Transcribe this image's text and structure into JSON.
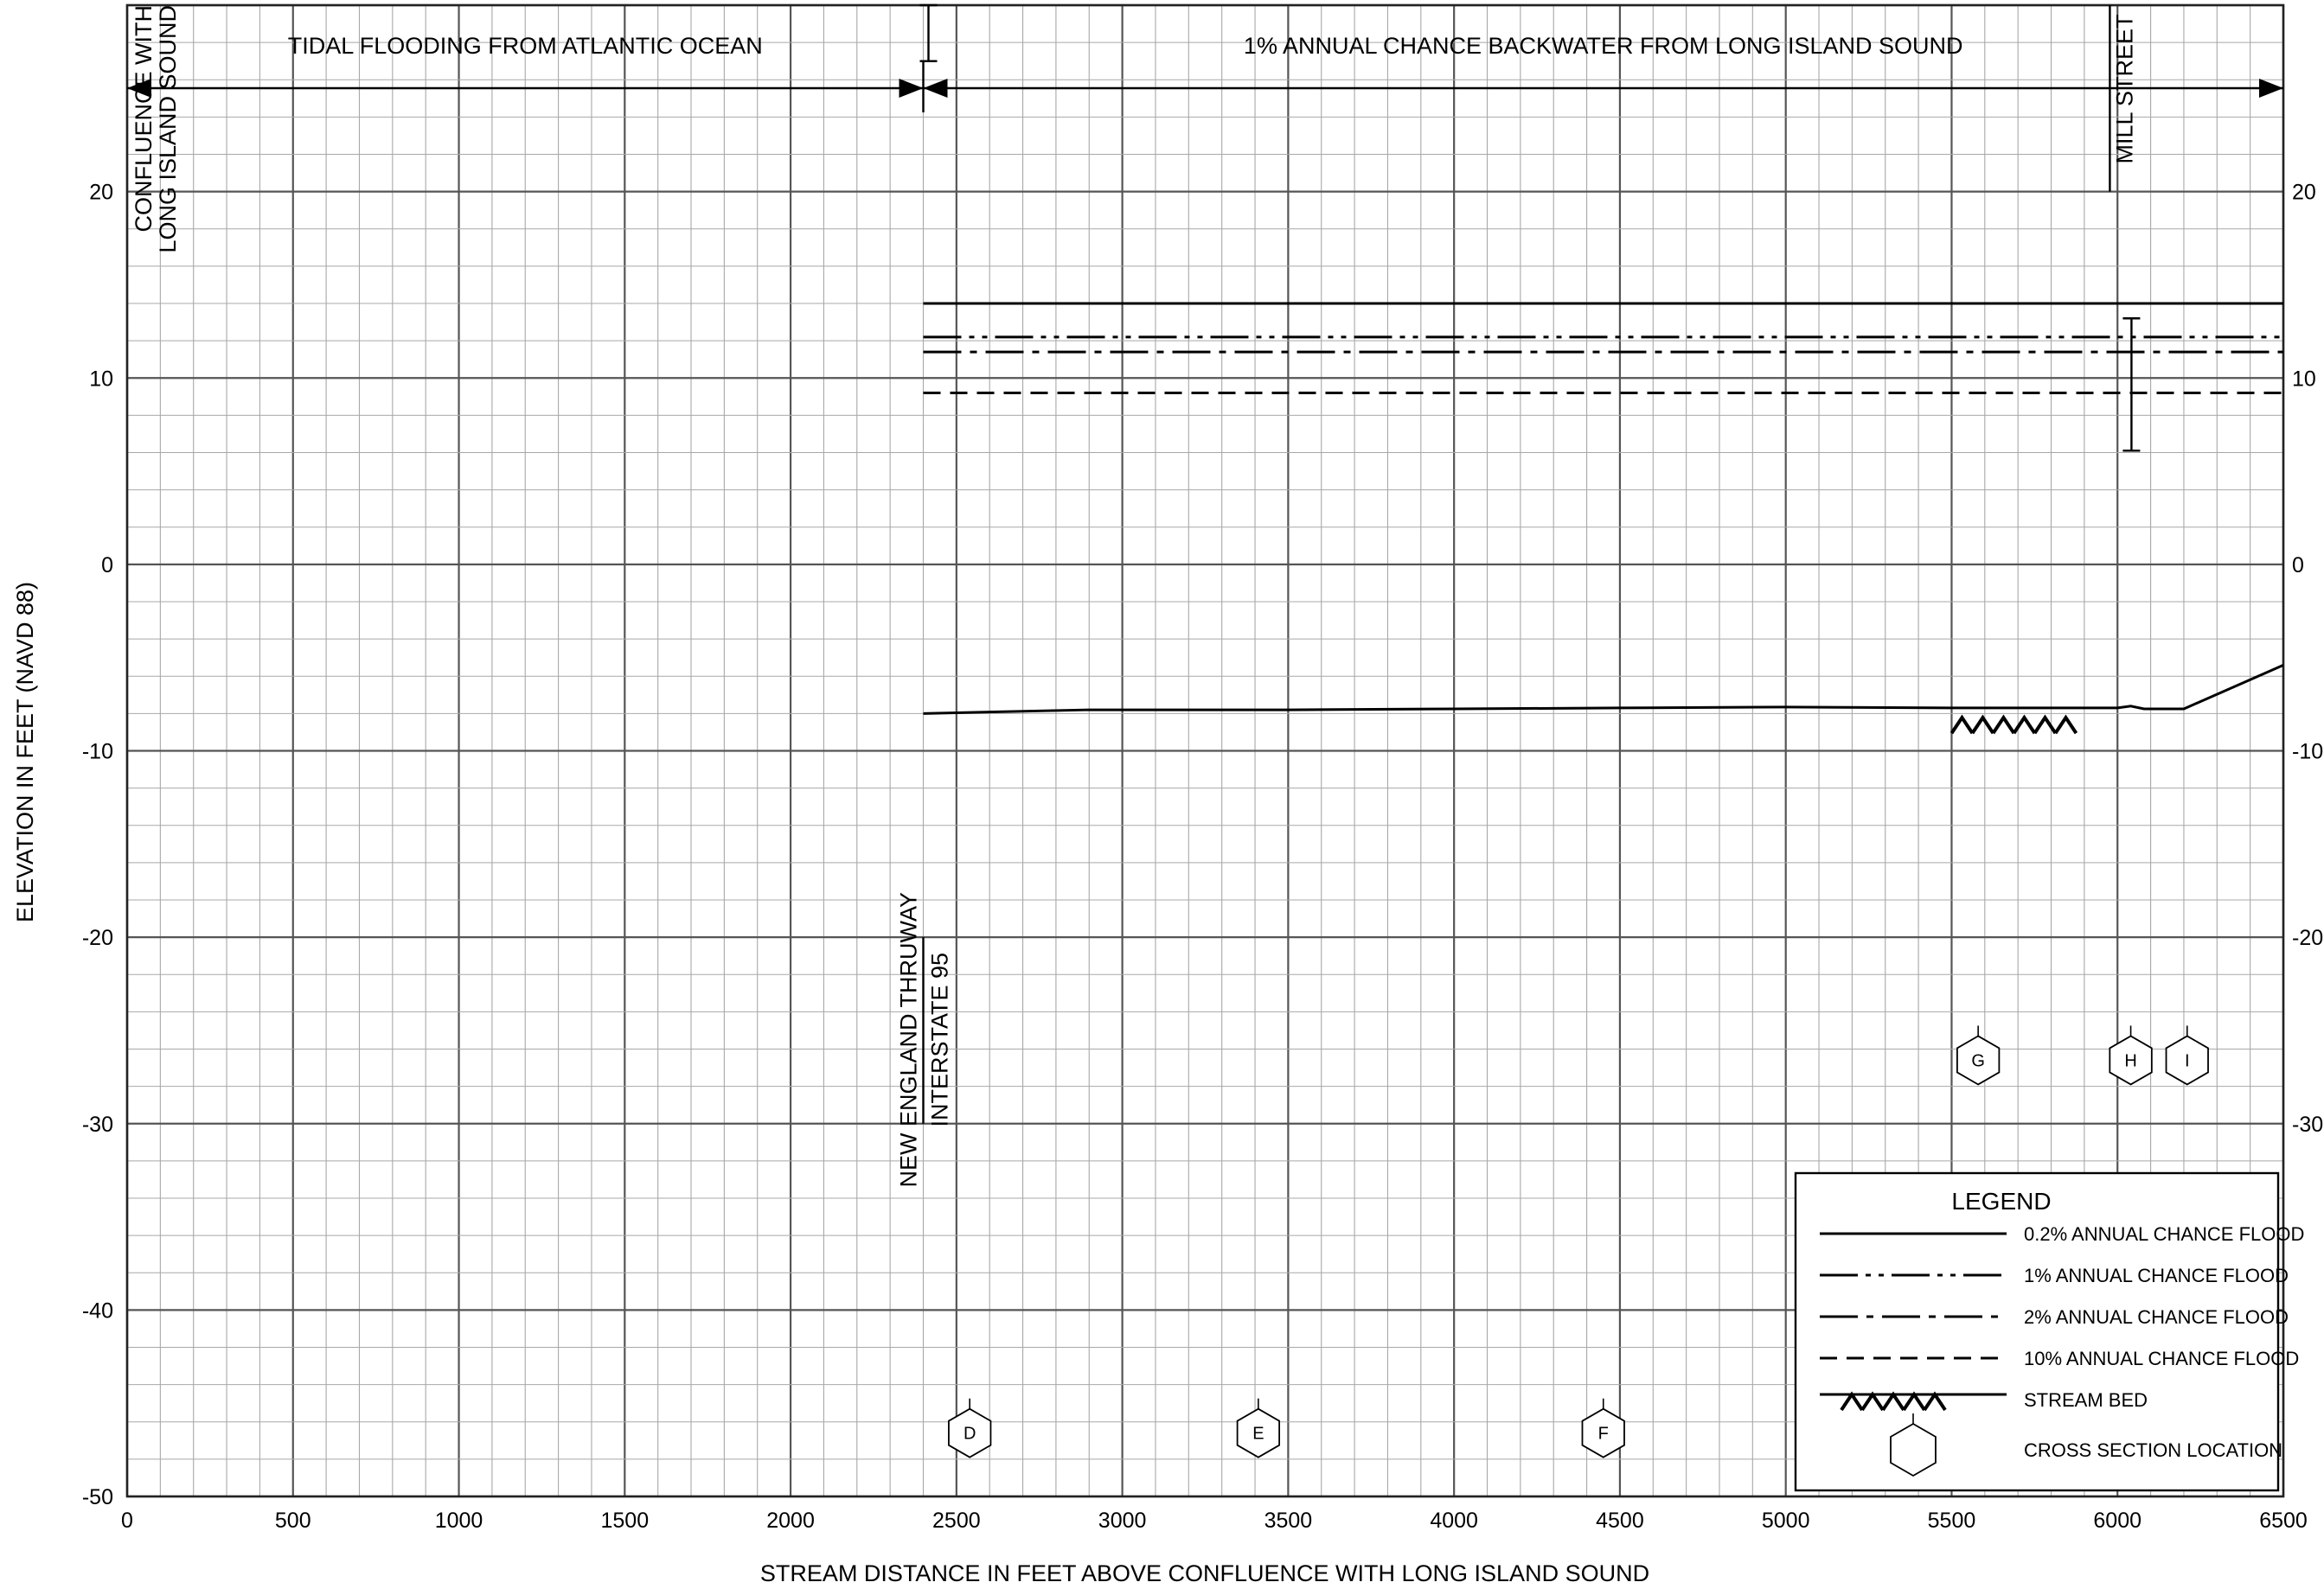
{
  "chart_data": {
    "type": "line",
    "title": "",
    "xlabel": "STREAM DISTANCE IN FEET ABOVE CONFLUENCE WITH LONG ISLAND SOUND",
    "ylabel": "ELEVATION IN FEET (NAVD 88)",
    "xlim": [
      0,
      6500
    ],
    "ylim": [
      -50,
      30
    ],
    "grid": true,
    "x_ticks": [
      "0",
      "500",
      "1000",
      "1500",
      "2000",
      "2500",
      "3000",
      "3500",
      "4000",
      "4500",
      "5000",
      "5500",
      "6000",
      "6500"
    ],
    "y_ticks_left": [
      "20",
      "10",
      "0",
      "-10",
      "-20",
      "-30",
      "-40",
      "-50"
    ],
    "y_ticks_right": [
      "20",
      "10",
      "0",
      "-10",
      "-20",
      "-30"
    ],
    "series": [
      {
        "name": "0.2% ANNUAL CHANCE FLOOD",
        "style": "solid",
        "x": [
          2400,
          6500
        ],
        "y": [
          14.0,
          14.0
        ]
      },
      {
        "name": "1% ANNUAL CHANCE FLOOD",
        "style": "dash-dot-dot",
        "x": [
          2400,
          6500
        ],
        "y": [
          12.2,
          12.2
        ]
      },
      {
        "name": "2% ANNUAL CHANCE FLOOD",
        "style": "dash-dot",
        "x": [
          2400,
          6500
        ],
        "y": [
          11.4,
          11.4
        ]
      },
      {
        "name": "10% ANNUAL CHANCE FLOOD",
        "style": "dashed",
        "x": [
          2400,
          6500
        ],
        "y": [
          9.2,
          9.2
        ]
      },
      {
        "name": "STREAM BED",
        "style": "bed",
        "x": [
          2400,
          2900,
          3500,
          4000,
          4500,
          5000,
          5500,
          6000,
          6040,
          6080,
          6200,
          6500
        ],
        "y": [
          -8.0,
          -7.8,
          -7.8,
          -7.75,
          -7.7,
          -7.65,
          -7.7,
          -7.7,
          -7.6,
          -7.75,
          -7.75,
          -5.4
        ]
      }
    ],
    "zones": [
      {
        "label": "TIDAL FLOODING FROM ATLANTIC OCEAN",
        "x_start": 0,
        "x_end": 2400
      },
      {
        "label": "1% ANNUAL CHANCE BACKWATER FROM LONG ISLAND SOUND",
        "x_start": 2400,
        "x_end": 6500
      }
    ],
    "structures": [
      {
        "lines": [
          "CONFLUENCE WITH",
          "LONG ISLAND SOUND"
        ],
        "x": 0
      },
      {
        "lines": [
          "NEW ENGLAND THRUWAY",
          "INTERSTATE 95"
        ],
        "x": 2400
      },
      {
        "lines": [
          "MILL STREET"
        ],
        "x": 6050
      }
    ],
    "cross_sections": [
      {
        "label": "D",
        "x": 2540
      },
      {
        "label": "E",
        "x": 3410
      },
      {
        "label": "F",
        "x": 4450
      },
      {
        "label": "G",
        "x": 5580
      },
      {
        "label": "H",
        "x": 6040
      },
      {
        "label": "I",
        "x": 6210
      }
    ],
    "legend": {
      "title": "LEGEND",
      "position": "bottom-right",
      "entries": [
        {
          "style": "solid",
          "label": "0.2% ANNUAL CHANCE FLOOD"
        },
        {
          "style": "dash-dot-dot",
          "label": "1% ANNUAL CHANCE FLOOD"
        },
        {
          "style": "dash-dot",
          "label": "2% ANNUAL CHANCE FLOOD"
        },
        {
          "style": "dashed",
          "label": "10% ANNUAL CHANCE FLOOD"
        },
        {
          "style": "bed",
          "label": "STREAM BED"
        },
        {
          "style": "hexagon",
          "label": "CROSS SECTION LOCATION"
        }
      ]
    }
  }
}
